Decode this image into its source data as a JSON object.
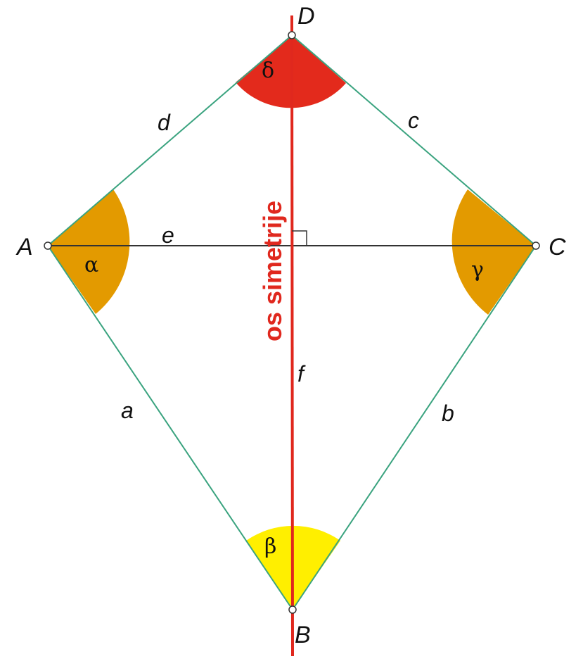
{
  "vertices": {
    "A": "A",
    "B": "B",
    "C": "C",
    "D": "D"
  },
  "sides": {
    "a": "a",
    "b": "b",
    "c": "c",
    "d": "d"
  },
  "diagonals": {
    "e": "e",
    "f": "f"
  },
  "angles": {
    "alpha": "α",
    "beta": "β",
    "gamma": "γ",
    "delta": "δ"
  },
  "axis_label": "os simetrije",
  "colors": {
    "edge": "#3aa37f",
    "axis": "#e0281e",
    "diagonal": "#333333",
    "alpha_gamma_fill": "#e39a00",
    "beta_fill": "#ffef00",
    "delta_fill": "#e32a1c"
  }
}
